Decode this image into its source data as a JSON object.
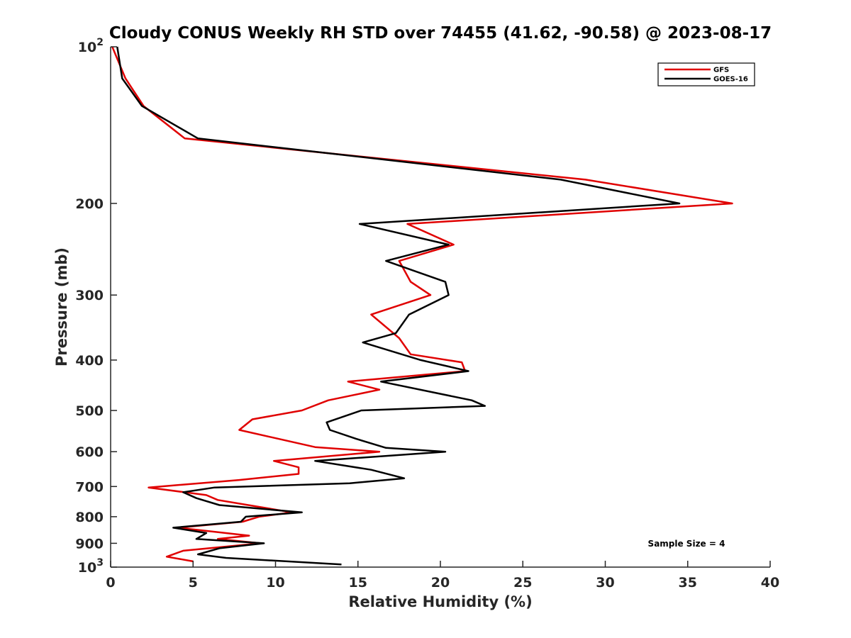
{
  "chart_data": {
    "type": "line",
    "title": "Cloudy CONUS Weekly RH STD over 74455 (41.62, -90.58) @ 2023-08-17",
    "xlabel": "Relative Humidity (%)",
    "ylabel": "Pressure (mb)",
    "xlim": [
      0,
      40
    ],
    "ylim": [
      100,
      1000
    ],
    "y_scale": "log",
    "y_reversed": true,
    "x_ticks": [
      0,
      5,
      10,
      15,
      20,
      25,
      30,
      35,
      40
    ],
    "x_tick_labels": [
      "0",
      "5",
      "10",
      "15",
      "20",
      "25",
      "30",
      "35",
      "40"
    ],
    "y_ticks": [
      100,
      200,
      300,
      400,
      500,
      600,
      700,
      800,
      900,
      1000
    ],
    "y_tick_labels": [
      {
        "base": "10",
        "exp": "2"
      },
      {
        "base": "200",
        "exp": ""
      },
      {
        "base": "300",
        "exp": ""
      },
      {
        "base": "400",
        "exp": ""
      },
      {
        "base": "500",
        "exp": ""
      },
      {
        "base": "600",
        "exp": ""
      },
      {
        "base": "700",
        "exp": ""
      },
      {
        "base": "800",
        "exp": ""
      },
      {
        "base": "900",
        "exp": ""
      },
      {
        "base": "10",
        "exp": "3"
      }
    ],
    "grid": false,
    "legend_position": "top-right",
    "annotation": "Sample Size = 4",
    "series": [
      {
        "name": "GFS",
        "color": "#e00000",
        "points": [
          [
            0.1,
            100
          ],
          [
            0.9,
            115
          ],
          [
            2.0,
            130
          ],
          [
            4.5,
            150
          ],
          [
            28.8,
            180
          ],
          [
            37.7,
            200
          ],
          [
            18.0,
            219
          ],
          [
            20.8,
            240
          ],
          [
            17.5,
            258
          ],
          [
            18.2,
            283
          ],
          [
            19.4,
            300
          ],
          [
            15.8,
            327
          ],
          [
            17.5,
            363
          ],
          [
            18.2,
            390
          ],
          [
            21.3,
            404
          ],
          [
            21.5,
            420
          ],
          [
            14.4,
            440
          ],
          [
            16.3,
            456
          ],
          [
            13.2,
            478
          ],
          [
            11.6,
            500
          ],
          [
            8.6,
            520
          ],
          [
            7.8,
            545
          ],
          [
            12.4,
            588
          ],
          [
            16.3,
            600
          ],
          [
            9.9,
            625
          ],
          [
            11.4,
            643
          ],
          [
            11.4,
            662
          ],
          [
            7.8,
            680
          ],
          [
            2.3,
            703
          ],
          [
            5.8,
            727
          ],
          [
            6.5,
            743
          ],
          [
            11.0,
            785
          ],
          [
            9.0,
            800
          ],
          [
            8.0,
            818
          ],
          [
            4.1,
            840
          ],
          [
            8.4,
            870
          ],
          [
            6.5,
            883
          ],
          [
            9.1,
            900
          ],
          [
            4.4,
            930
          ],
          [
            3.4,
            955
          ],
          [
            5.0,
            975
          ]
        ]
      },
      {
        "name": "GOES-16",
        "color": "#000000",
        "points": [
          [
            0.4,
            100
          ],
          [
            0.7,
            115
          ],
          [
            1.9,
            130
          ],
          [
            5.3,
            150
          ],
          [
            27.3,
            180
          ],
          [
            34.5,
            200
          ],
          [
            15.1,
            219
          ],
          [
            20.5,
            240
          ],
          [
            16.7,
            258
          ],
          [
            20.3,
            283
          ],
          [
            20.5,
            300
          ],
          [
            18.1,
            327
          ],
          [
            17.3,
            355
          ],
          [
            15.3,
            370
          ],
          [
            18.8,
            400
          ],
          [
            21.7,
            420
          ],
          [
            16.4,
            440
          ],
          [
            21.9,
            478
          ],
          [
            22.7,
            490
          ],
          [
            15.2,
            500
          ],
          [
            13.1,
            527
          ],
          [
            13.3,
            545
          ],
          [
            14.9,
            567
          ],
          [
            16.7,
            590
          ],
          [
            20.3,
            600
          ],
          [
            12.4,
            625
          ],
          [
            15.8,
            650
          ],
          [
            17.8,
            675
          ],
          [
            14.5,
            690
          ],
          [
            6.3,
            703
          ],
          [
            4.4,
            718
          ],
          [
            5.2,
            737
          ],
          [
            6.6,
            760
          ],
          [
            11.6,
            785
          ],
          [
            8.2,
            800
          ],
          [
            7.9,
            818
          ],
          [
            3.8,
            840
          ],
          [
            5.8,
            860
          ],
          [
            5.2,
            883
          ],
          [
            9.3,
            900
          ],
          [
            6.6,
            920
          ],
          [
            5.3,
            945
          ],
          [
            7.0,
            960
          ],
          [
            14.0,
            988
          ]
        ]
      }
    ]
  }
}
